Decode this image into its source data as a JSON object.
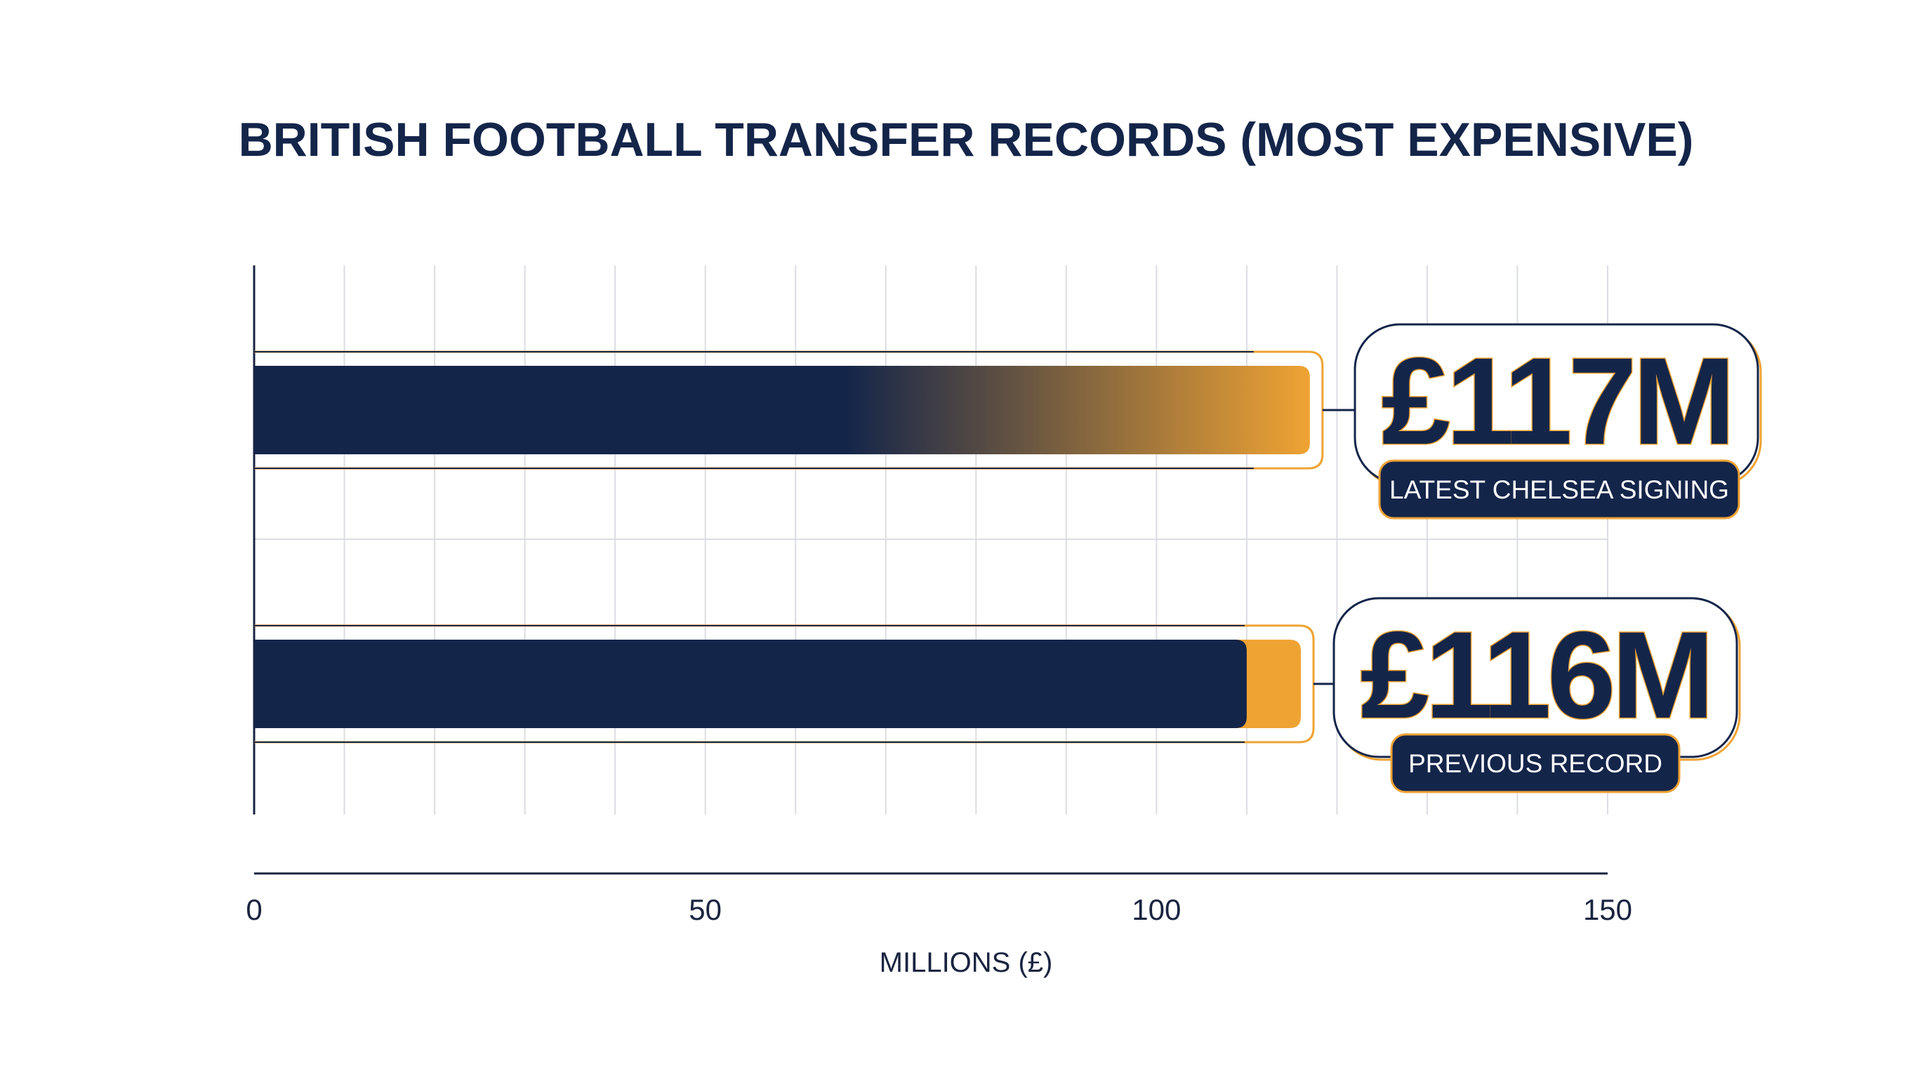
{
  "chart_data": {
    "type": "bar",
    "orientation": "horizontal",
    "title": "BRITISH FOOTBALL TRANSFER RECORDS (MOST EXPENSIVE)",
    "xlabel": "MILLIONS (£)",
    "ylabel": "",
    "xlim": [
      0,
      150
    ],
    "x_ticks": [
      0,
      50,
      100,
      150
    ],
    "grid": true,
    "legend": "none",
    "bars": [
      {
        "value": 117,
        "value_label": "£117M",
        "tag": "LATEST CHELSEA SIGNING",
        "fill": "gradient",
        "highlight_start": null
      },
      {
        "value": 116,
        "value_label": "£116M",
        "tag": "PREVIOUS RECORD",
        "fill": "split",
        "highlight_start": 110
      }
    ]
  },
  "colors": {
    "navy": "#14254a",
    "gold": "#efa333",
    "grid": "#dcdde2",
    "axis": "#1a2440"
  }
}
